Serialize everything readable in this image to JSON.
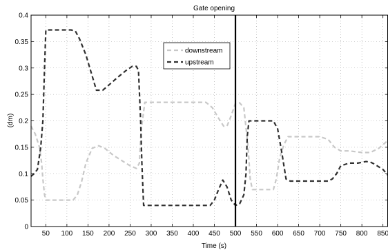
{
  "chart_data": {
    "type": "line",
    "title": "Gate opening",
    "xlabel": "Time (s)",
    "ylabel": "(dm)",
    "xlim": [
      15,
      862
    ],
    "ylim": [
      0,
      0.4
    ],
    "xticks": [
      50,
      100,
      150,
      200,
      250,
      300,
      350,
      400,
      450,
      500,
      550,
      600,
      650,
      700,
      750,
      800,
      850
    ],
    "yticks": [
      0,
      0.05,
      0.1,
      0.15,
      0.2,
      0.25,
      0.3,
      0.35,
      0.4
    ],
    "ytick_labels": [
      "0",
      "0.05",
      "0.1",
      "0.15",
      "0.2",
      "0.25",
      "0.3",
      "0.35",
      "0.4"
    ],
    "grid": true,
    "legend_position": "upper-center",
    "vertical_marker_x": 500,
    "series": [
      {
        "name": "downstream",
        "color": "#c8c8c8",
        "style": "dashed",
        "x": [
          15,
          25,
          35,
          40,
          43,
          47,
          50,
          60,
          90,
          115,
          125,
          135,
          145,
          160,
          175,
          190,
          210,
          230,
          250,
          265,
          272,
          276,
          285,
          320,
          380,
          430,
          445,
          460,
          472,
          480,
          490,
          500,
          510,
          520,
          530,
          535,
          540,
          560,
          590,
          597,
          605,
          615,
          625,
          650,
          700,
          720,
          735,
          750,
          770,
          800,
          820,
          840,
          862
        ],
        "y": [
          0.19,
          0.175,
          0.15,
          0.12,
          0.09,
          0.06,
          0.05,
          0.05,
          0.05,
          0.05,
          0.06,
          0.085,
          0.12,
          0.148,
          0.153,
          0.148,
          0.135,
          0.125,
          0.115,
          0.11,
          0.12,
          0.18,
          0.235,
          0.235,
          0.235,
          0.235,
          0.225,
          0.205,
          0.19,
          0.19,
          0.21,
          0.233,
          0.234,
          0.225,
          0.15,
          0.09,
          0.07,
          0.07,
          0.07,
          0.09,
          0.13,
          0.155,
          0.17,
          0.17,
          0.17,
          0.165,
          0.15,
          0.143,
          0.143,
          0.14,
          0.14,
          0.148,
          0.163
        ]
      },
      {
        "name": "upstream",
        "color": "#303030",
        "style": "dashed",
        "x": [
          15,
          22,
          30,
          38,
          43,
          47,
          50,
          60,
          90,
          110,
          120,
          130,
          145,
          160,
          170,
          185,
          200,
          220,
          240,
          255,
          265,
          270,
          275,
          278,
          282,
          290,
          320,
          380,
          430,
          440,
          450,
          460,
          470,
          480,
          490,
          500,
          510,
          520,
          525,
          528,
          532,
          540,
          560,
          590,
          600,
          610,
          620,
          630,
          660,
          700,
          720,
          730,
          740,
          750,
          770,
          790,
          810,
          820,
          830,
          840,
          850,
          862
        ],
        "y": [
          0.095,
          0.1,
          0.108,
          0.15,
          0.2,
          0.3,
          0.372,
          0.372,
          0.372,
          0.372,
          0.37,
          0.355,
          0.325,
          0.285,
          0.258,
          0.258,
          0.268,
          0.282,
          0.295,
          0.303,
          0.303,
          0.295,
          0.2,
          0.12,
          0.04,
          0.04,
          0.04,
          0.04,
          0.04,
          0.04,
          0.05,
          0.07,
          0.088,
          0.075,
          0.05,
          0.04,
          0.043,
          0.06,
          0.1,
          0.17,
          0.2,
          0.2,
          0.2,
          0.2,
          0.185,
          0.14,
          0.09,
          0.086,
          0.086,
          0.086,
          0.086,
          0.09,
          0.1,
          0.115,
          0.12,
          0.12,
          0.123,
          0.122,
          0.118,
          0.113,
          0.108,
          0.097
        ]
      }
    ]
  }
}
